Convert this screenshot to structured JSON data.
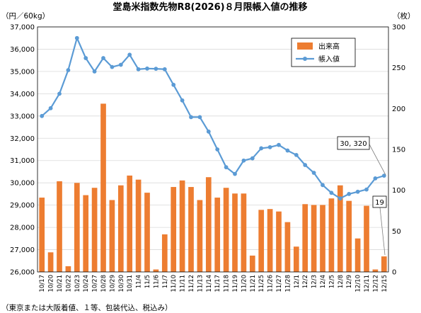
{
  "chart_data": {
    "type": "bar+line",
    "title": "堂島米指数先物R8(2026)８月限帳入値の推移",
    "left_axis": {
      "label": "（円／60kg）",
      "min": 26000,
      "max": 37000,
      "step": 1000,
      "ticks": [
        "26,000",
        "27,000",
        "28,000",
        "29,000",
        "30,000",
        "31,000",
        "32,000",
        "33,000",
        "34,000",
        "35,000",
        "36,000",
        "37,000"
      ]
    },
    "right_axis": {
      "label": "（枚）",
      "min": 0,
      "max": 300,
      "step": 50,
      "ticks": [
        "0",
        "50",
        "100",
        "150",
        "200",
        "250",
        "300"
      ]
    },
    "categories": [
      "10/17",
      "10/20",
      "10/21",
      "10/22",
      "10/23",
      "10/24",
      "10/27",
      "10/28",
      "10/29",
      "10/30",
      "10/31",
      "11/4",
      "11/5",
      "11/6",
      "11/7",
      "11/10",
      "11/11",
      "11/12",
      "11/13",
      "11/14",
      "11/17",
      "11/18",
      "11/19",
      "11/20",
      "11/21",
      "11/25",
      "11/26",
      "11/27",
      "11/28",
      "12/1",
      "12/2",
      "12/3",
      "12/4",
      "12/5",
      "12/8",
      "12/9",
      "12/10",
      "12/11",
      "12/12",
      "12/15"
    ],
    "series": [
      {
        "name": "出来高",
        "axis": "right",
        "type": "bar",
        "color": "#ED7D31",
        "values": [
          91,
          24,
          111,
          7,
          109,
          94,
          103,
          206,
          88,
          106,
          118,
          113,
          97,
          3,
          46,
          104,
          112,
          104,
          88,
          116,
          91,
          103,
          96,
          96,
          20,
          76,
          77,
          74,
          61,
          31,
          83,
          82,
          82,
          90,
          106,
          87,
          41,
          81,
          3,
          19
        ]
      },
      {
        "name": "帳入値",
        "axis": "left",
        "type": "line",
        "color": "#5B9BD5",
        "values": [
          33000,
          33350,
          34000,
          35060,
          36500,
          35600,
          35000,
          35600,
          35200,
          35300,
          35750,
          35100,
          35130,
          35120,
          35100,
          34400,
          33700,
          32950,
          32950,
          32300,
          31500,
          30700,
          30400,
          31000,
          31100,
          31550,
          31600,
          31700,
          31450,
          31250,
          30800,
          30450,
          29900,
          29550,
          29300,
          29500,
          29600,
          29700,
          30200,
          30320
        ]
      }
    ],
    "annotations": [
      {
        "text": "30, 320",
        "series": "帳入値",
        "category": "12/15"
      },
      {
        "text": "19",
        "series": "出来高",
        "category": "12/15"
      }
    ],
    "legend": {
      "position": "top-right"
    },
    "note": "（東京または大阪着値、１等、包装代込、税込み）",
    "grid": {
      "horizontal": true,
      "vertical": false
    }
  }
}
